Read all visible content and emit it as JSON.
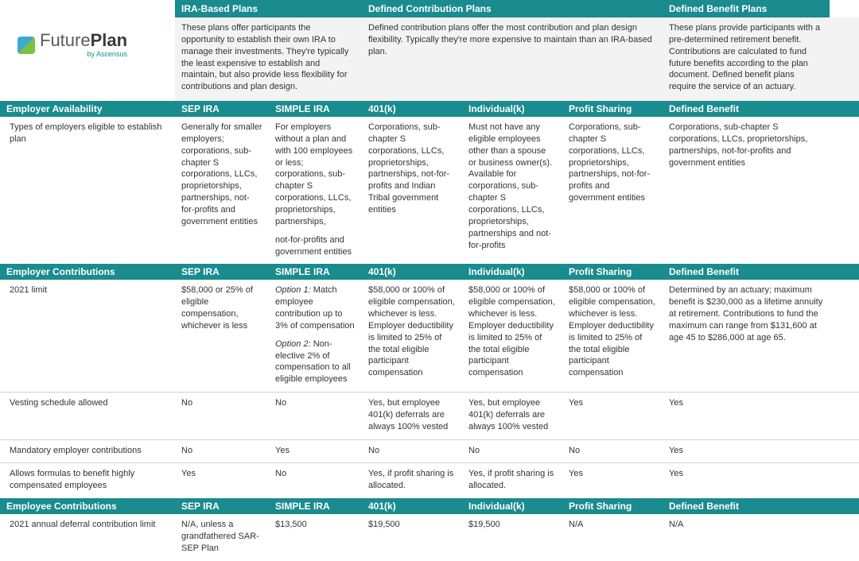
{
  "colors": {
    "header_bg": "#1a8b8e",
    "header_text": "#ffffff",
    "alt_bg": "#f3f3f3",
    "border": "#d0d0d0",
    "text": "#333333"
  },
  "logo": {
    "main1": "Future",
    "main2": "Plan",
    "sub": "by Ascensus"
  },
  "top_headers": {
    "ira": "IRA-Based Plans",
    "dc": "Defined Contribution Plans",
    "db": "Defined Benefit Plans"
  },
  "top_desc": {
    "ira": "These plans offer participants the opportunity to establish their own IRA to manage their investments. They're typically the least expensive to establish and maintain, but also provide less flexibility for contributions and plan design.",
    "dc": "Defined contribution plans offer the most contribution and plan design flexibility. Typically they're more expensive to maintain than an IRA-based plan.",
    "db": "These plans provide participants with a pre-determined retirement benefit. Contributions are calculated to fund future benefits according to the plan document. Defined benefit plans require the service of an actuary."
  },
  "col_labels": {
    "sep": "SEP IRA",
    "simple": "SIMPLE IRA",
    "k401": "401(k)",
    "ind": "Individual(k)",
    "ps": "Profit Sharing",
    "db": "Defined Benefit"
  },
  "sections": {
    "avail": {
      "title": "Employer Availability",
      "rows": {
        "types": {
          "label": "Types of employers eligible to establish plan",
          "sep": "Generally for smaller employers; corporations, sub-chapter S corporations, LLCs, proprietorships, partnerships, not-for-profits and government entities",
          "simple_a": "For employers without a plan and with 100 employees or less; corporations, sub-chapter S corporations, LLCs, proprietorships, partnerships,",
          "simple_b": "not-for-profits and government entities",
          "k401": "Corporations, sub-chapter S corporations, LLCs, proprietorships, partnerships, not-for-profits and Indian Tribal government entities",
          "ind": "Must not have any eligible employees other than a spouse or business owner(s). Available for corporations, sub-chapter S corporations, LLCs, proprietorships, partnerships and not-for-profits",
          "ps": "Corporations, sub-chapter S corporations, LLCs, proprietorships, partnerships, not-for-profits and government entities",
          "db": "Corporations, sub-chapter S corporations, LLCs, proprietorships, partnerships, not-for-profits and government entities"
        }
      }
    },
    "emp_contrib": {
      "title": "Employer Contributions",
      "rows": {
        "limit": {
          "label": "2021 limit",
          "sep": "$58,000 or 25% of eligible compensation, whichever is less",
          "simple_a_prefix": "Option 1:",
          "simple_a": " Match employee contribution up to 3% of compensation",
          "simple_b_prefix": "Option 2:",
          "simple_b": " Non-elective 2% of compensation to all eligible employees",
          "k401": "$58,000 or 100% of eligible compensation, whichever is less. Employer deductibility is limited to 25% of the total eligible participant compensation",
          "ind": "$58,000 or 100% of eligible compensation, whichever is less. Employer deductibility is limited to 25% of the total eligible participant compensation",
          "ps": "$58,000 or 100% of eligible compensation, whichever is less. Employer deductibility is limited to 25% of the total eligible participant compensation",
          "db": "Determined by an actuary; maximum benefit is $230,000 as a lifetime annuity at retirement. Contributions to fund the maximum can range from $131,600 at age 45 to $286,000 at age 65."
        },
        "vesting": {
          "label": "Vesting schedule allowed",
          "sep": "No",
          "simple": "No",
          "k401": "Yes, but employee 401(k) deferrals are always 100% vested",
          "ind": "Yes, but employee 401(k) deferrals are always 100% vested",
          "ps": "Yes",
          "db": "Yes"
        },
        "mandatory": {
          "label": "Mandatory employer contributions",
          "sep": "No",
          "simple": "Yes",
          "k401": "No",
          "ind": "No",
          "ps": "No",
          "db": "Yes"
        },
        "hce": {
          "label": "Allows formulas to benefit highly compensated employees",
          "sep": "Yes",
          "simple": "No",
          "k401": "Yes, if profit sharing is allocated.",
          "ind": "Yes, if profit sharing is allocated.",
          "ps": "Yes",
          "db": "Yes"
        }
      }
    },
    "ee_contrib": {
      "title": "Employee Contributions",
      "rows": {
        "deferral": {
          "label": "2021 annual deferral contribution limit",
          "sep": "N/A, unless a grandfathered SAR-SEP Plan",
          "simple": "$13,500",
          "k401": "$19,500",
          "ind": "$19,500",
          "ps": "N/A",
          "db": "N/A"
        }
      }
    }
  }
}
